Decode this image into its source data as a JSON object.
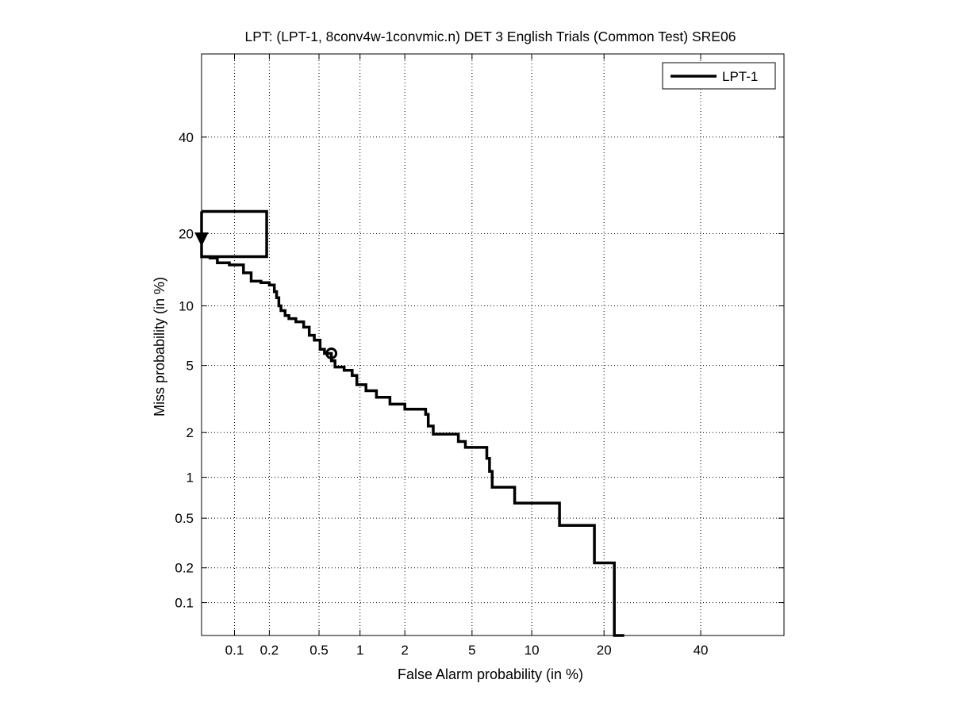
{
  "chart_data": {
    "type": "line",
    "title": "LPT: (LPT-1, 8conv4w-1convmic.n) DET 3 English Trials (Common Test) SRE06",
    "xlabel": "False Alarm probability (in %)",
    "ylabel": "Miss probability (in %)",
    "xscale": "probit",
    "yscale": "probit",
    "xlim": [
      0.05,
      60
    ],
    "ylim": [
      0.05,
      60
    ],
    "xticks": [
      0.1,
      0.2,
      0.5,
      1,
      2,
      5,
      10,
      20,
      40
    ],
    "xtick_labels": [
      "0.1",
      "0.2",
      "0.5",
      "1",
      "2",
      "5",
      "10",
      "20",
      "40"
    ],
    "yticks": [
      0.1,
      0.2,
      0.5,
      1,
      2,
      5,
      10,
      20,
      40
    ],
    "ytick_labels": [
      "0.1",
      "0.2",
      "0.5",
      "1",
      "2",
      "5",
      "10",
      "20",
      "40"
    ],
    "grid": true,
    "legend": {
      "location": "top-right",
      "entries": [
        "LPT-1"
      ]
    },
    "series": [
      {
        "name": "LPT-1",
        "color": "#000000",
        "x": [
          0.05,
          0.05,
          0.06,
          0.06,
          0.07,
          0.07,
          0.09,
          0.09,
          0.12,
          0.12,
          0.14,
          0.14,
          0.17,
          0.17,
          0.2,
          0.2,
          0.22,
          0.22,
          0.23,
          0.23,
          0.24,
          0.24,
          0.25,
          0.25,
          0.27,
          0.27,
          0.29,
          0.29,
          0.33,
          0.33,
          0.38,
          0.38,
          0.42,
          0.42,
          0.46,
          0.46,
          0.51,
          0.51,
          0.55,
          0.55,
          0.62,
          0.62,
          0.66,
          0.66,
          0.77,
          0.77,
          0.88,
          0.88,
          0.95,
          0.95,
          1.1,
          1.1,
          1.3,
          1.3,
          1.6,
          1.6,
          2.0,
          2.0,
          2.7,
          2.7,
          2.8,
          2.8,
          3.0,
          3.0,
          4.2,
          4.2,
          4.6,
          4.6,
          6.0,
          6.0,
          6.2,
          6.2,
          6.4,
          6.4,
          8.3,
          8.3,
          13.3,
          13.3,
          18.4,
          18.4,
          21.8,
          21.8,
          23.6,
          23.6
        ],
        "y": [
          24.0,
          16.3,
          16.3,
          16.1,
          16.1,
          15.4,
          15.4,
          15.1,
          15.1,
          14.0,
          14.0,
          12.9,
          12.9,
          12.7,
          12.7,
          12.4,
          12.4,
          11.6,
          11.6,
          10.9,
          10.9,
          10.0,
          10.0,
          9.5,
          9.5,
          9.0,
          9.0,
          8.7,
          8.7,
          8.4,
          8.4,
          7.9,
          7.9,
          7.2,
          7.2,
          6.8,
          6.8,
          6.1,
          6.1,
          5.8,
          5.8,
          5.3,
          5.3,
          4.9,
          4.9,
          4.7,
          4.7,
          4.4,
          4.4,
          3.9,
          3.9,
          3.6,
          3.6,
          3.3,
          3.3,
          3.0,
          3.0,
          2.8,
          2.8,
          2.6,
          2.6,
          2.2,
          2.2,
          1.95,
          1.95,
          1.75,
          1.75,
          1.6,
          1.6,
          1.35,
          1.35,
          1.1,
          1.1,
          0.85,
          0.85,
          0.65,
          0.65,
          0.44,
          0.44,
          0.22,
          0.22,
          0.05,
          0.05,
          0.05
        ]
      }
    ],
    "markers": [
      {
        "series": "LPT-1",
        "symbol": "triangle-down",
        "x": 0.05,
        "y": 19.2
      },
      {
        "series": "LPT-1",
        "symbol": "circle",
        "x": 0.62,
        "y": 5.8
      }
    ],
    "confidence_box": {
      "x": [
        0.05,
        0.19
      ],
      "y": [
        16.3,
        24.0
      ]
    }
  }
}
